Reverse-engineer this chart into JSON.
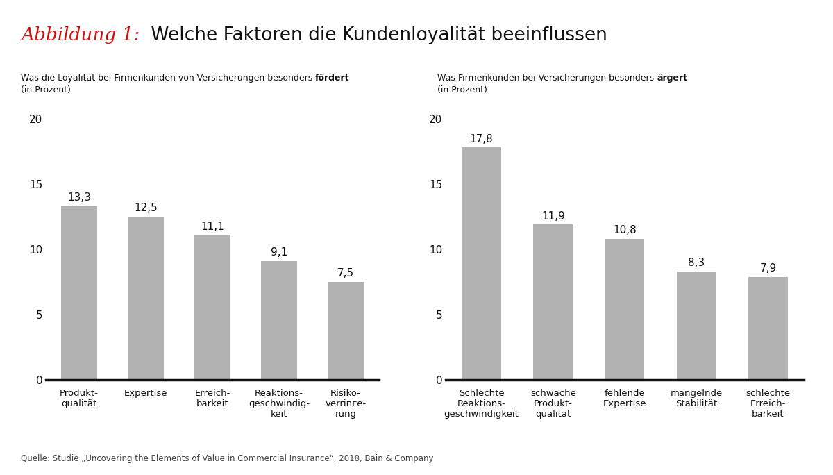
{
  "title_italic": "Abbildung 1:",
  "title_normal": " Welche Faktoren die Kundenloyalität beeinflussen",
  "subtitle_left_line1": "Was die Loyalität bei Firmenkunden von Versicherungen besonders ",
  "subtitle_left_bold": "fördert",
  "subtitle_left_line2": "(in Prozent)",
  "subtitle_right_line1": "Was Firmenkunden bei Versicherungen besonders ",
  "subtitle_right_bold": "ärgert",
  "subtitle_right_line2": "(in Prozent)",
  "left_categories": [
    "Produkt-\nqualität",
    "Expertise",
    "Erreich-\nbarkeit",
    "Reaktions-\ngeschwindig-\nkeit",
    "Risiko-\nverrinге-\nrung"
  ],
  "left_values": [
    13.3,
    12.5,
    11.1,
    9.1,
    7.5
  ],
  "left_labels": [
    "13,3",
    "12,5",
    "11,1",
    "9,1",
    "7,5"
  ],
  "right_categories": [
    "Schlechte\nReaktions-\ngeschwindigkeit",
    "schwache\nProdukt-\nqualität",
    "fehlende\nExpertise",
    "mangelnde\nStabilität",
    "schlechte\nErreich-\nbarkeit"
  ],
  "right_values": [
    17.8,
    11.9,
    10.8,
    8.3,
    7.9
  ],
  "right_labels": [
    "17,8",
    "11,9",
    "10,8",
    "8,3",
    "7,9"
  ],
  "bar_color": "#b2b2b2",
  "ylim": [
    0,
    20
  ],
  "yticks": [
    0,
    5,
    10,
    15,
    20
  ],
  "background_color": "#ffffff",
  "source_text": "Quelle: Studie „Uncovering the Elements of Value in Commercial Insurance“, 2018, Bain & Company",
  "title_color_italic": "#cc1111",
  "title_color_normal": "#111111"
}
